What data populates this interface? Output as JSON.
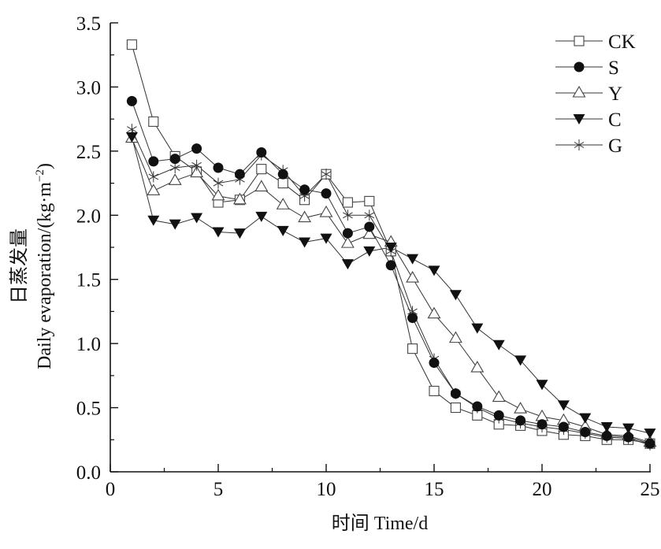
{
  "chart_data": {
    "type": "line",
    "title": "",
    "xlabel": "时间 Time/d",
    "ylabel_cn": "日蒸发量",
    "ylabel_en": "Daily evaporation/(kg·m",
    "ylabel_sup": "−2",
    "ylabel_close": ")",
    "xlim": [
      0,
      25
    ],
    "ylim": [
      0,
      3.5
    ],
    "xticks": [
      0,
      5,
      10,
      15,
      20,
      25
    ],
    "xtick_labels": [
      "0",
      "5",
      "10",
      "15",
      "20",
      "25"
    ],
    "yticks": [
      0,
      0.5,
      1.0,
      1.5,
      2.0,
      2.5,
      3.0,
      3.5
    ],
    "ytick_labels": [
      "0.0",
      "0.5",
      "1.0",
      "1.5",
      "2.0",
      "2.5",
      "3.0",
      "3.5"
    ],
    "grid": false,
    "legend_position": "top-right",
    "x": [
      1,
      2,
      3,
      4,
      5,
      6,
      7,
      8,
      9,
      10,
      11,
      12,
      13,
      14,
      15,
      16,
      17,
      18,
      19,
      20,
      21,
      22,
      23,
      24,
      25
    ],
    "series": [
      {
        "name": "CK",
        "marker": "square-open",
        "values": [
          3.33,
          2.73,
          2.46,
          2.34,
          2.1,
          2.12,
          2.36,
          2.25,
          2.12,
          2.32,
          2.1,
          2.11,
          1.72,
          0.96,
          0.63,
          0.5,
          0.44,
          0.37,
          0.36,
          0.32,
          0.29,
          0.28,
          0.25,
          0.25,
          0.22
        ]
      },
      {
        "name": "S",
        "marker": "circle-filled",
        "values": [
          2.89,
          2.42,
          2.44,
          2.52,
          2.37,
          2.32,
          2.49,
          2.32,
          2.2,
          2.17,
          1.86,
          1.91,
          1.61,
          1.2,
          0.85,
          0.61,
          0.51,
          0.44,
          0.4,
          0.37,
          0.35,
          0.31,
          0.28,
          0.27,
          0.22
        ]
      },
      {
        "name": "Y",
        "marker": "triangle-up-open",
        "values": [
          2.6,
          2.19,
          2.27,
          2.33,
          2.15,
          2.12,
          2.22,
          2.08,
          1.98,
          2.02,
          1.78,
          1.85,
          1.79,
          1.51,
          1.23,
          1.04,
          0.81,
          0.58,
          0.49,
          0.43,
          0.4,
          0.35,
          0.29,
          0.28,
          0.23
        ]
      },
      {
        "name": "C",
        "marker": "triangle-down-filled",
        "values": [
          2.61,
          1.96,
          1.93,
          1.98,
          1.87,
          1.86,
          1.99,
          1.88,
          1.79,
          1.82,
          1.62,
          1.72,
          1.75,
          1.66,
          1.57,
          1.38,
          1.12,
          0.99,
          0.87,
          0.68,
          0.52,
          0.42,
          0.35,
          0.34,
          0.3
        ]
      },
      {
        "name": "G",
        "marker": "asterisk",
        "values": [
          2.67,
          2.3,
          2.37,
          2.39,
          2.25,
          2.28,
          2.47,
          2.35,
          2.15,
          2.32,
          2.0,
          2.0,
          1.72,
          1.25,
          0.88,
          0.61,
          0.5,
          0.42,
          0.38,
          0.35,
          0.33,
          0.3,
          0.27,
          0.26,
          0.21
        ]
      }
    ]
  }
}
